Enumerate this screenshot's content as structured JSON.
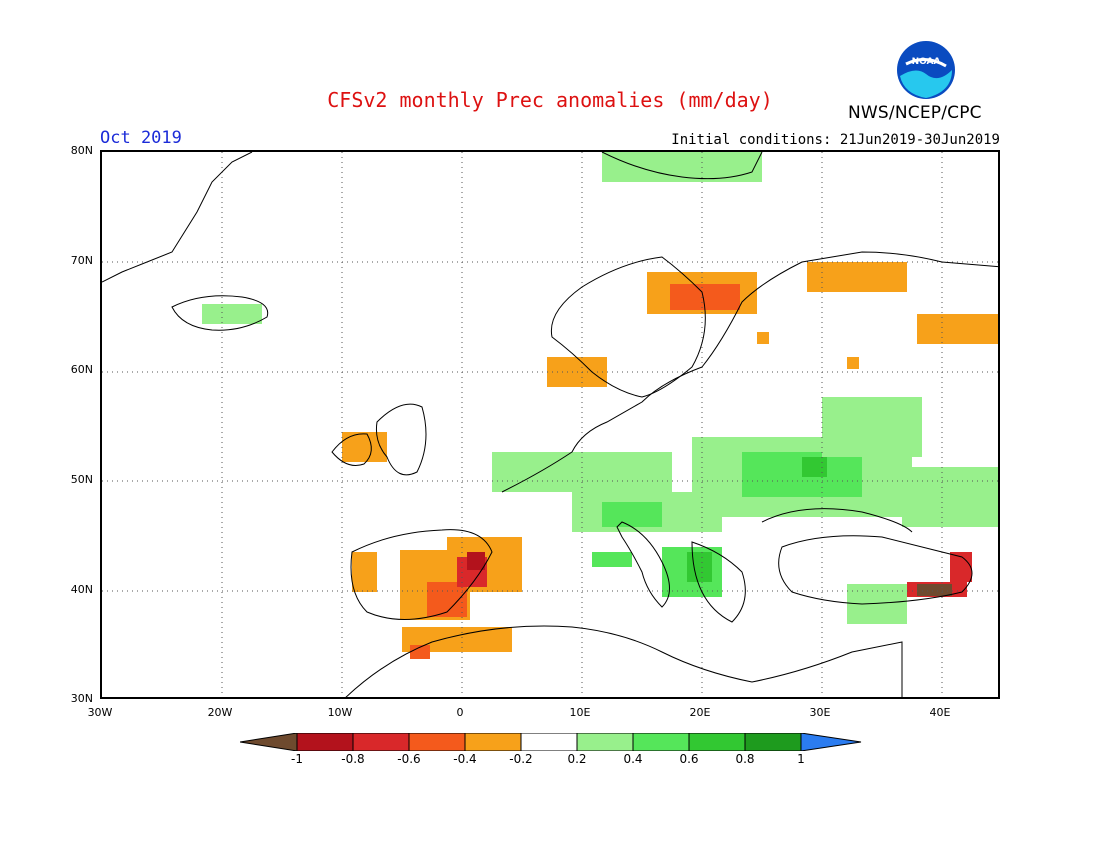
{
  "header": {
    "title": "CFSv2 monthly Prec anomalies (mm/day)",
    "month": "Oct 2019",
    "initial_conditions": "Initial conditions: 21Jun2019-30Jun2019",
    "agency": "NWS/NCEP/CPC",
    "logo_text": "NOAA"
  },
  "map": {
    "lat_range": [
      30,
      80
    ],
    "lon_range": [
      -30,
      45
    ],
    "lat_labels": [
      "80N",
      "70N",
      "60N",
      "50N",
      "40N",
      "30N"
    ],
    "lon_labels": [
      "30W",
      "20W",
      "10W",
      "0",
      "10E",
      "20E",
      "30E",
      "40E"
    ]
  },
  "colorbar": {
    "labels": [
      "-1",
      "-0.8",
      "-0.6",
      "-0.4",
      "-0.2",
      "0.2",
      "0.4",
      "0.6",
      "0.8",
      "1"
    ],
    "colors": {
      "lt_m1": "#6e4a2e",
      "m1_m08": "#b3121c",
      "m08_m06": "#d9282a",
      "m06_m04": "#f45a1c",
      "m04_m02": "#f7a11a",
      "neutral": "#ffffff",
      "p02_p04": "#98f08c",
      "p04_p06": "#55e65a",
      "p06_p08": "#32c832",
      "p08_p1": "#1e9b1e",
      "gt_p1": "#2b7cf0"
    }
  }
}
